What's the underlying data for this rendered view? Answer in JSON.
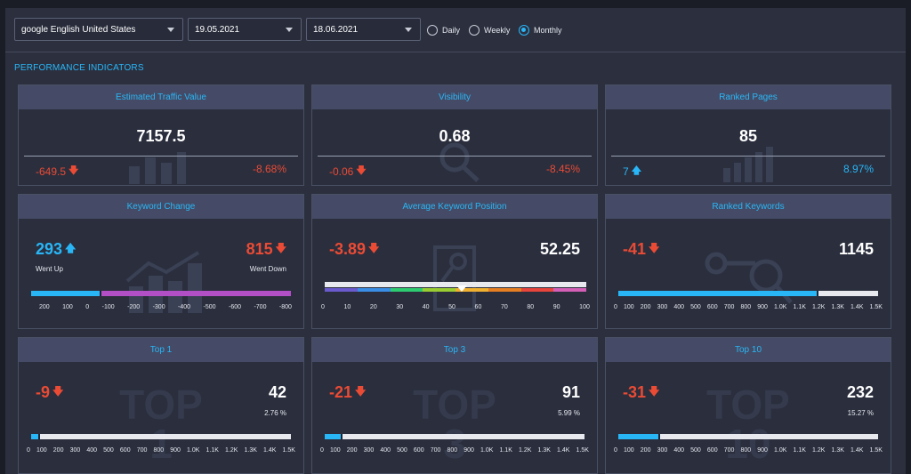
{
  "toolbar": {
    "engine": "google English United States",
    "date_from": "19.05.2021",
    "date_to": "18.06.2021",
    "periods": [
      "Daily",
      "Weekly",
      "Monthly"
    ],
    "selected_period": "Monthly"
  },
  "section_title": "PERFORMANCE INDICATORS",
  "cards": {
    "traffic": {
      "title": "Estimated Traffic Value",
      "value": "7157.5",
      "delta": "-649.5",
      "delta_pct": "-8.68%"
    },
    "visibility": {
      "title": "Visibility",
      "value": "0.68",
      "delta": "-0.06",
      "delta_pct": "-8.45%"
    },
    "ranked_pages": {
      "title": "Ranked Pages",
      "value": "85",
      "delta": "7",
      "delta_pct": "8.97%"
    },
    "keyword_change": {
      "title": "Keyword Change",
      "up_value": "293",
      "up_label": "Went Up",
      "down_value": "815",
      "down_label": "Went Down",
      "ticks": [
        "200",
        "100",
        "0",
        "-100",
        "-200",
        "-300",
        "-400",
        "-500",
        "-600",
        "-700",
        "-800"
      ],
      "up_fraction": 0.264,
      "down_fraction": 0.736
    },
    "avg_position": {
      "title": "Average Keyword Position",
      "delta": "-3.89",
      "value": "52.25",
      "ticks": [
        "0",
        "10",
        "20",
        "30",
        "40",
        "50",
        "60",
        "70",
        "80",
        "90",
        "100"
      ],
      "position": 52.25,
      "segment_colors": [
        "#6a5acd",
        "#3a8ee6",
        "#2ecc71",
        "#9acd32",
        "#f0b030",
        "#e67e22",
        "#e8453c",
        "#d35fb7"
      ]
    },
    "ranked_keywords": {
      "title": "Ranked Keywords",
      "delta": "-41",
      "value": "1145",
      "ticks": [
        "0",
        "100",
        "200",
        "300",
        "400",
        "500",
        "600",
        "700",
        "800",
        "900",
        "1.0K",
        "1.1K",
        "1.2K",
        "1.3K",
        "1.4K",
        "1.5K"
      ],
      "fill_value": 1145,
      "max": 1500
    },
    "top1": {
      "title": "Top 1",
      "delta": "-9",
      "value": "42",
      "pct": "2.76 %",
      "ticks": [
        "0",
        "100",
        "200",
        "300",
        "400",
        "500",
        "600",
        "700",
        "800",
        "900",
        "1.0K",
        "1.1K",
        "1.2K",
        "1.3K",
        "1.4K",
        "1.5K"
      ],
      "fill_value": 42,
      "max": 1500
    },
    "top3": {
      "title": "Top 3",
      "delta": "-21",
      "value": "91",
      "pct": "5.99 %",
      "ticks": [
        "0",
        "100",
        "200",
        "300",
        "400",
        "500",
        "600",
        "700",
        "800",
        "900",
        "1.0K",
        "1.1K",
        "1.2K",
        "1.3K",
        "1.4K",
        "1.5K"
      ],
      "fill_value": 91,
      "max": 1500
    },
    "top10": {
      "title": "Top 10",
      "delta": "-31",
      "value": "232",
      "pct": "15.27 %",
      "ticks": [
        "0",
        "100",
        "200",
        "300",
        "400",
        "500",
        "600",
        "700",
        "800",
        "900",
        "1.0K",
        "1.1K",
        "1.2K",
        "1.3K",
        "1.4K",
        "1.5K"
      ],
      "fill_value": 232,
      "max": 1500
    }
  },
  "watermarks": {
    "top1": "TOP 1",
    "top3": "TOP 3",
    "top10": "TOP 10"
  },
  "colors": {
    "accent": "#29b6f6",
    "negative": "#ea4b35",
    "purple": "#b24fc6",
    "track": "#e8e9ee",
    "panel": "#2a2e3d",
    "header": "#454b66"
  },
  "icons": {
    "down": "arrow-down-icon",
    "up": "arrow-up-icon",
    "dropdown": "caret-down-icon"
  }
}
